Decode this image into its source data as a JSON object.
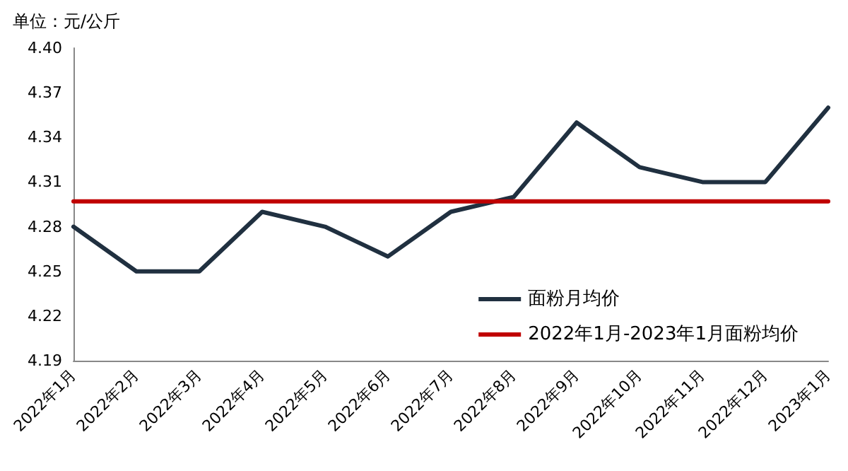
{
  "chart_data": {
    "type": "line",
    "ylabel": "单位：元/公斤",
    "categories": [
      "2022年1月",
      "2022年2月",
      "2022年3月",
      "2022年4月",
      "2022年5月",
      "2022年6月",
      "2022年7月",
      "2022年8月",
      "2022年9月",
      "2022年10月",
      "2022年11月",
      "2022年12月",
      "2023年1月"
    ],
    "series": [
      {
        "name": "面粉月均价",
        "color": "#203040",
        "values": [
          4.28,
          4.25,
          4.25,
          4.29,
          4.28,
          4.26,
          4.29,
          4.3,
          4.35,
          4.32,
          4.31,
          4.31,
          4.36
        ]
      },
      {
        "name": "2022年1月-2023年1月面粉均价",
        "color": "#c00000",
        "values": [
          4.297,
          4.297,
          4.297,
          4.297,
          4.297,
          4.297,
          4.297,
          4.297,
          4.297,
          4.297,
          4.297,
          4.297,
          4.297
        ]
      }
    ],
    "ylim": [
      4.19,
      4.4
    ],
    "yticks": [
      4.19,
      4.22,
      4.25,
      4.28,
      4.31,
      4.34,
      4.37,
      {
        "value": 4.4,
        "label": "4.40"
      }
    ],
    "grid": false,
    "legend": "bottom right",
    "marker": "none",
    "line_style": "solid"
  }
}
